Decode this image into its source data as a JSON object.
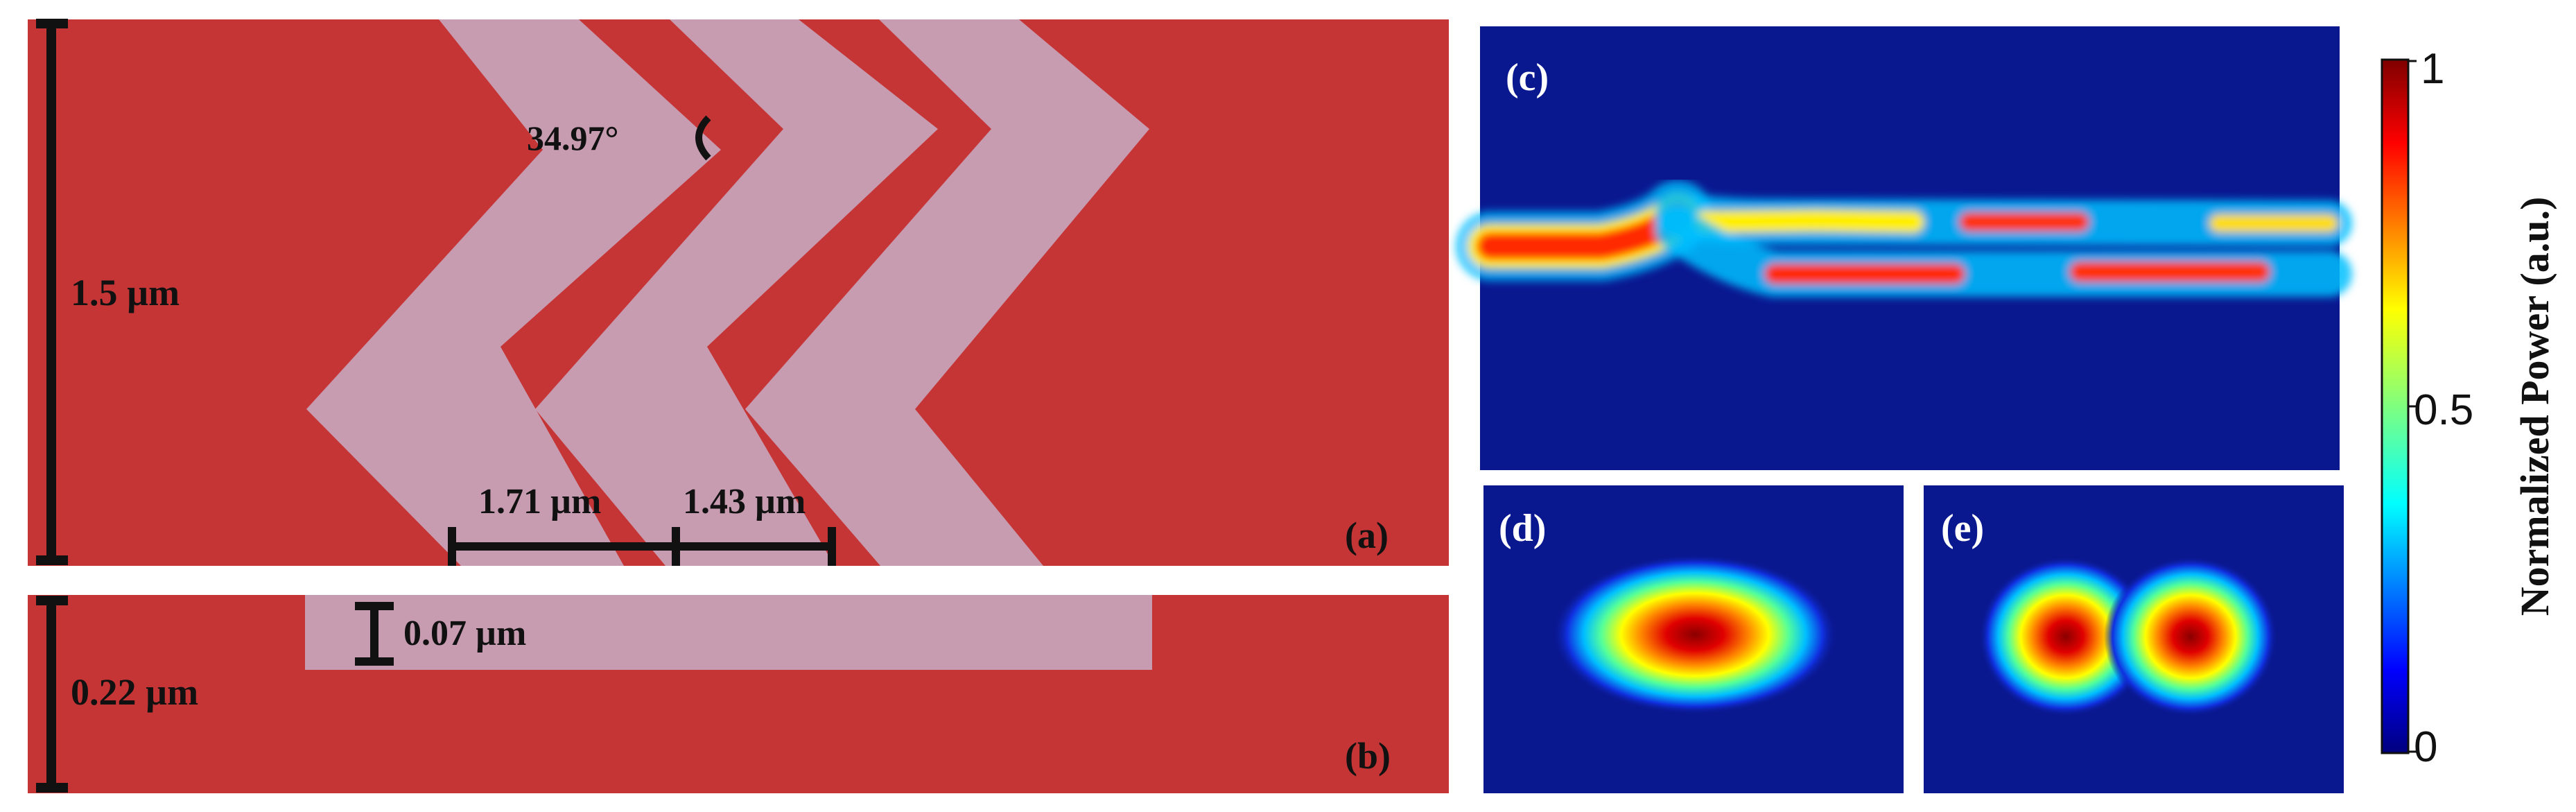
{
  "colors": {
    "substrate": "#c63535",
    "grating": "#c79bb0",
    "field_background": "#0a1890",
    "dimension_line": "#111111"
  },
  "panel_a": {
    "label": "(a)",
    "height_dim": "1.5 µm",
    "angle": "34.97°",
    "period_dim": "1.71 µm",
    "width_dim": "1.43 µm"
  },
  "panel_b": {
    "label": "(b)",
    "thickness_dim": "0.22 µm",
    "etch_depth_dim": "0.07 µm"
  },
  "panel_c": {
    "label": "(c)"
  },
  "panel_d": {
    "label": "(d)"
  },
  "panel_e": {
    "label": "(e)"
  },
  "colorbar": {
    "title": "Normalized Power (a.u.)",
    "tick_max": "1",
    "tick_mid": "0.5",
    "tick_min": "0",
    "range": [
      0,
      1
    ],
    "colormap": "jet"
  }
}
